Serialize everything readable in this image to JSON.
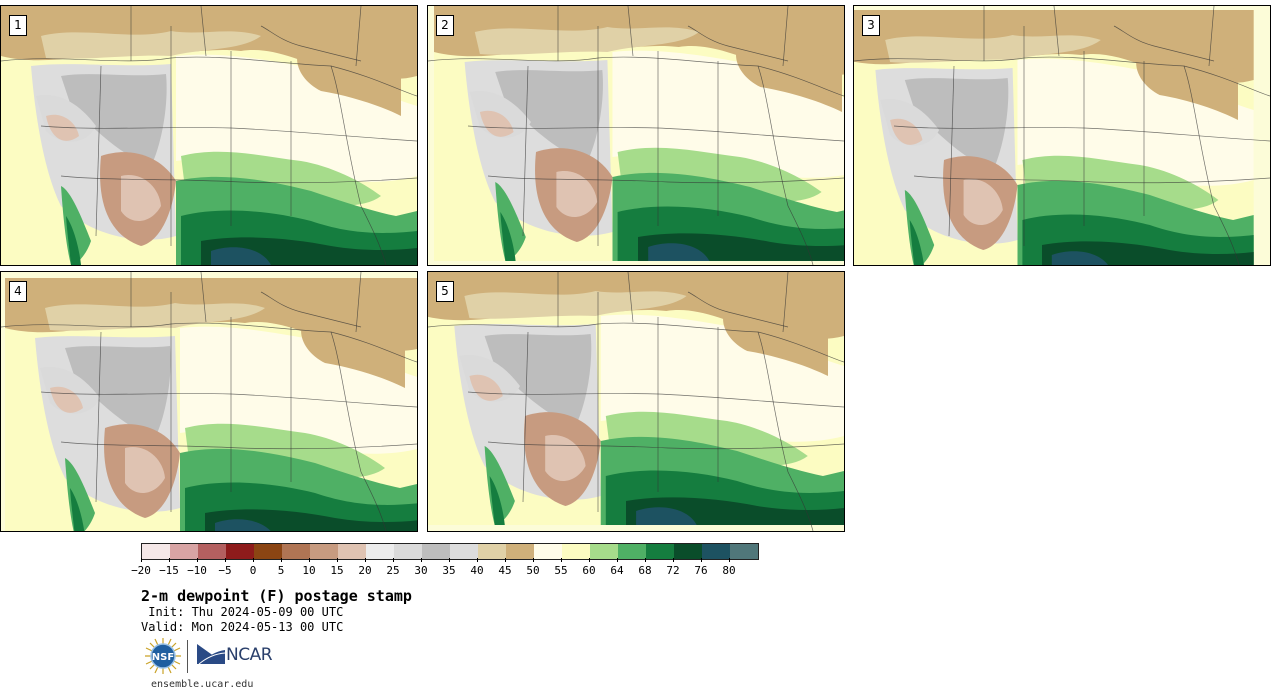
{
  "panels": [
    {
      "number": "1"
    },
    {
      "number": "2"
    },
    {
      "number": "3"
    },
    {
      "number": "4"
    },
    {
      "number": "5"
    }
  ],
  "colorbar": {
    "colors": [
      "#f5e8e8",
      "#d8a4a4",
      "#b46060",
      "#8e1b1b",
      "#8b4513",
      "#b07554",
      "#c79b80",
      "#dfc3b2",
      "#ececec",
      "#dadada",
      "#bdbdbd",
      "#dddddd",
      "#e0d1a7",
      "#cfb07a",
      "#fffce9",
      "#fcfcc2",
      "#a6dc8b",
      "#4fb065",
      "#157d3f",
      "#0a4d2a",
      "#1d5261",
      "#50777a"
    ],
    "tick_labels": [
      "−20",
      "−15",
      "−10",
      "−5",
      "0",
      "5",
      "10",
      "15",
      "20",
      "25",
      "30",
      "35",
      "40",
      "45",
      "50",
      "55",
      "60",
      "64",
      "68",
      "72",
      "76",
      "80"
    ]
  },
  "title": "2-m dewpoint (F) postage stamp",
  "init": " Init: Thu 2024-05-09 00 UTC",
  "valid": "Valid: Mon 2024-05-13 00 UTC",
  "logos": {
    "nsf": "NSF",
    "ncar": "NCAR"
  },
  "site": "ensemble.ucar.edu"
}
